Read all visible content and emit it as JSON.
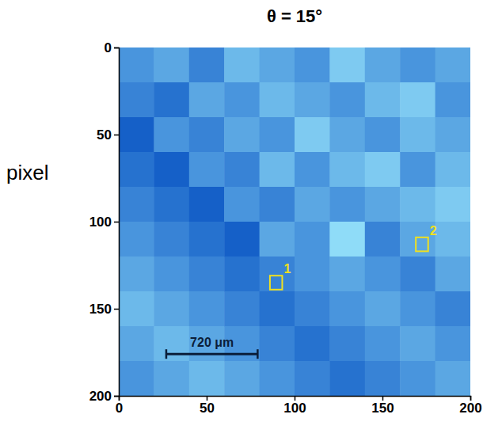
{
  "chart_data": {
    "type": "heatmap",
    "title": "θ = 15°",
    "y_label": "pixel",
    "xlim": [
      0,
      200
    ],
    "ylim": [
      0,
      200
    ],
    "xticks": [
      0,
      50,
      100,
      150,
      200
    ],
    "yticks": [
      0,
      50,
      100,
      150,
      200
    ],
    "cells": [
      [
        0.45,
        0.5,
        0.4,
        0.55,
        0.5,
        0.45,
        0.6,
        0.5,
        0.45,
        0.5
      ],
      [
        0.4,
        0.35,
        0.5,
        0.45,
        0.55,
        0.5,
        0.45,
        0.55,
        0.6,
        0.45
      ],
      [
        0.3,
        0.45,
        0.4,
        0.5,
        0.45,
        0.6,
        0.5,
        0.45,
        0.55,
        0.5
      ],
      [
        0.35,
        0.3,
        0.45,
        0.4,
        0.55,
        0.45,
        0.55,
        0.6,
        0.45,
        0.55
      ],
      [
        0.4,
        0.35,
        0.3,
        0.45,
        0.4,
        0.5,
        0.45,
        0.5,
        0.55,
        0.6
      ],
      [
        0.45,
        0.4,
        0.35,
        0.3,
        0.5,
        0.45,
        0.65,
        0.4,
        0.5,
        0.55
      ],
      [
        0.5,
        0.45,
        0.4,
        0.35,
        0.4,
        0.45,
        0.5,
        0.45,
        0.4,
        0.5
      ],
      [
        0.55,
        0.5,
        0.45,
        0.4,
        0.35,
        0.4,
        0.45,
        0.5,
        0.45,
        0.4
      ],
      [
        0.5,
        0.55,
        0.5,
        0.45,
        0.4,
        0.35,
        0.4,
        0.45,
        0.5,
        0.45
      ],
      [
        0.45,
        0.5,
        0.55,
        0.5,
        0.45,
        0.4,
        0.35,
        0.4,
        0.45,
        0.5
      ]
    ],
    "annotations": [
      {
        "text": "720 μm",
        "x": [
          27,
          79
        ],
        "y": 176
      },
      {
        "text": "1",
        "x": [
          86,
          93
        ],
        "y": [
          131,
          139
        ]
      },
      {
        "text": "2",
        "x": [
          169,
          176
        ],
        "y": [
          109,
          117
        ]
      }
    ]
  }
}
